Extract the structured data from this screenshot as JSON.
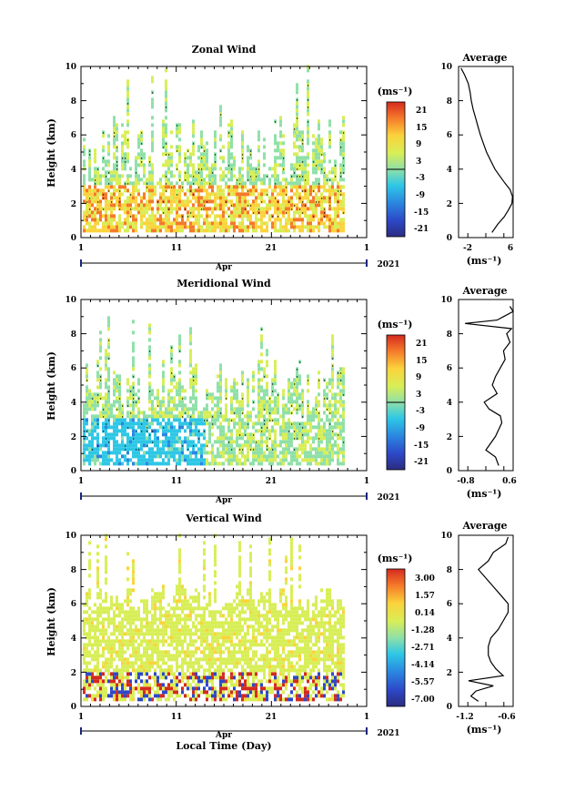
{
  "panels": [
    {
      "title": "Zonal Wind",
      "ylabel": "Height (km)",
      "xlabel": "",
      "month": "Apr",
      "year": "2021",
      "xtick_labels": [
        "1",
        "11",
        "21",
        "1"
      ],
      "ytick_labels": [
        "0",
        "2",
        "4",
        "6",
        "8",
        "10"
      ],
      "unit_label": "(ms⁻¹)",
      "colorbar_labels": [
        "21",
        "15",
        "9",
        "3",
        "-3",
        "-9",
        "-15",
        "-21"
      ],
      "avg_title": "Average",
      "avg_unit": "(ms⁻¹)",
      "avg_xtick_labels": [
        "-2",
        "6"
      ]
    },
    {
      "title": "Meridional Wind",
      "ylabel": "Height (km)",
      "xlabel": "",
      "month": "Apr",
      "year": "2021",
      "xtick_labels": [
        "1",
        "11",
        "21",
        "1"
      ],
      "ytick_labels": [
        "0",
        "2",
        "4",
        "6",
        "8",
        "10"
      ],
      "unit_label": "(ms⁻¹)",
      "colorbar_labels": [
        "21",
        "15",
        "9",
        "3",
        "-3",
        "-9",
        "-15",
        "-21"
      ],
      "avg_title": "Average",
      "avg_unit": "(ms⁻¹)",
      "avg_xtick_labels": [
        "-0.8",
        "0.6"
      ]
    },
    {
      "title": "Vertical Wind",
      "ylabel": "Height (km)",
      "xlabel": "Local Time (Day)",
      "month": "Apr",
      "year": "2021",
      "xtick_labels": [
        "1",
        "11",
        "21",
        "1"
      ],
      "ytick_labels": [
        "0",
        "2",
        "4",
        "6",
        "8",
        "10"
      ],
      "unit_label": "(ms⁻¹)",
      "colorbar_labels": [
        "3.00",
        "1.57",
        "0.14",
        "-1.28",
        "-2.71",
        "-4.14",
        "-5.57",
        "-7.00"
      ],
      "avg_title": "Average",
      "avg_unit": "(ms⁻¹)",
      "avg_xtick_labels": [
        "-1.2",
        "-0.6"
      ]
    }
  ],
  "chart_data": [
    {
      "type": "heatmap",
      "title": "Zonal Wind",
      "ylabel": "Height (km)",
      "x_range_day": [
        1,
        31
      ],
      "ylim": [
        0,
        10
      ],
      "color_range": [
        -24,
        24
      ],
      "colorbar_ticks": [
        21,
        15,
        9,
        3,
        -3,
        -9,
        -15,
        -21
      ],
      "profile": {
        "title": "Average",
        "xlim": [
          -3,
          6
        ],
        "height_km": [
          0.3,
          0.8,
          1.2,
          1.6,
          2.0,
          2.4,
          2.8,
          3.2,
          3.6,
          4.0,
          4.5,
          5.0,
          5.5,
          6.0,
          6.5,
          7.0,
          7.5,
          8.0,
          8.5,
          9.0,
          9.5,
          9.9
        ],
        "value": [
          2.5,
          3.5,
          4.5,
          5.2,
          5.8,
          5.9,
          5.5,
          4.6,
          3.8,
          3.0,
          2.3,
          1.6,
          1.1,
          0.6,
          0.2,
          -0.2,
          -0.6,
          -0.9,
          -1.1,
          -1.4,
          -2.0,
          -2.6
        ]
      }
    },
    {
      "type": "heatmap",
      "title": "Meridional Wind",
      "ylabel": "Height (km)",
      "x_range_day": [
        1,
        31
      ],
      "ylim": [
        0,
        10
      ],
      "color_range": [
        -24,
        24
      ],
      "colorbar_ticks": [
        21,
        15,
        9,
        3,
        -3,
        -9,
        -15,
        -21
      ],
      "profile": {
        "title": "Average",
        "xlim": [
          -1.1,
          0.6
        ],
        "height_km": [
          0.3,
          0.8,
          1.2,
          1.6,
          2.0,
          2.4,
          2.8,
          3.2,
          3.6,
          4.0,
          4.5,
          5.0,
          5.5,
          6.0,
          6.5,
          7.0,
          7.5,
          8.0,
          8.3,
          8.6,
          8.8,
          9.0,
          9.3,
          9.6
        ],
        "value": [
          0.15,
          0.05,
          -0.25,
          -0.1,
          0.05,
          0.15,
          0.25,
          0.2,
          -0.15,
          -0.3,
          0.1,
          -0.05,
          0.05,
          0.2,
          0.35,
          0.3,
          0.5,
          0.4,
          0.55,
          -0.9,
          0.1,
          0.3,
          0.6,
          0.5
        ]
      }
    },
    {
      "type": "heatmap",
      "title": "Vertical Wind",
      "ylabel": "Height (km)",
      "xlabel": "Local Time (Day)",
      "x_range_day": [
        1,
        31
      ],
      "ylim": [
        0,
        10
      ],
      "color_range": [
        -7.0,
        3.0
      ],
      "colorbar_ticks": [
        3.0,
        1.57,
        0.14,
        -1.28,
        -2.71,
        -4.14,
        -5.57,
        -7.0
      ],
      "profile": {
        "title": "Average",
        "xlim": [
          -1.6,
          -0.5
        ],
        "height_km": [
          0.3,
          0.6,
          0.9,
          1.2,
          1.5,
          1.8,
          2.2,
          2.6,
          3.0,
          3.5,
          4.0,
          4.5,
          5.0,
          5.5,
          6.0,
          6.5,
          7.0,
          7.5,
          8.0,
          8.5,
          9.0,
          9.5,
          9.9
        ],
        "value": [
          -1.2,
          -1.35,
          -1.25,
          -0.9,
          -1.4,
          -0.7,
          -0.85,
          -0.95,
          -1.0,
          -1.0,
          -0.95,
          -0.8,
          -0.7,
          -0.6,
          -0.6,
          -0.75,
          -0.9,
          -1.05,
          -1.2,
          -1.0,
          -0.9,
          -0.65,
          -0.6
        ]
      }
    }
  ]
}
